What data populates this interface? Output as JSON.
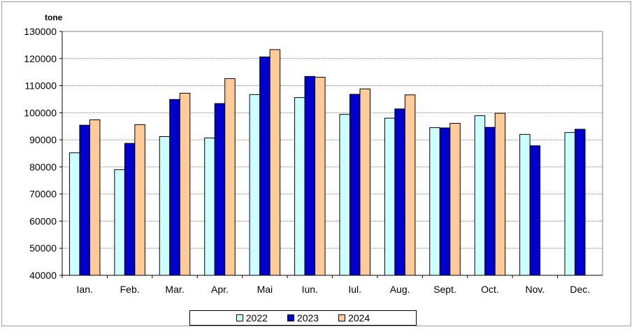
{
  "chart_data": {
    "type": "bar",
    "unit_label": "tone",
    "categories": [
      "Ian.",
      "Feb.",
      "Mar.",
      "Apr.",
      "Mai",
      "Iun.",
      "Iul.",
      "Aug.",
      "Sept.",
      "Oct.",
      "Nov.",
      "Dec."
    ],
    "series": [
      {
        "name": "2022",
        "color": "#ccffff",
        "values": [
          85200,
          79000,
          91200,
          90700,
          106700,
          105600,
          99400,
          98000,
          94500,
          98900,
          92000,
          92700
        ]
      },
      {
        "name": "2023",
        "color": "#0000cc",
        "values": [
          95400,
          88700,
          104900,
          103400,
          120600,
          113400,
          106800,
          101400,
          94400,
          94600,
          87800,
          93900
        ]
      },
      {
        "name": "2024",
        "color": "#ffcc99",
        "values": [
          97400,
          95600,
          107200,
          112600,
          123300,
          113100,
          108800,
          106600,
          96100,
          99800,
          null,
          null
        ]
      }
    ],
    "ylim": [
      40000,
      130000
    ],
    "yticks": [
      40000,
      50000,
      60000,
      70000,
      80000,
      90000,
      100000,
      110000,
      120000,
      130000
    ],
    "grid": true,
    "legend_position": "bottom"
  }
}
